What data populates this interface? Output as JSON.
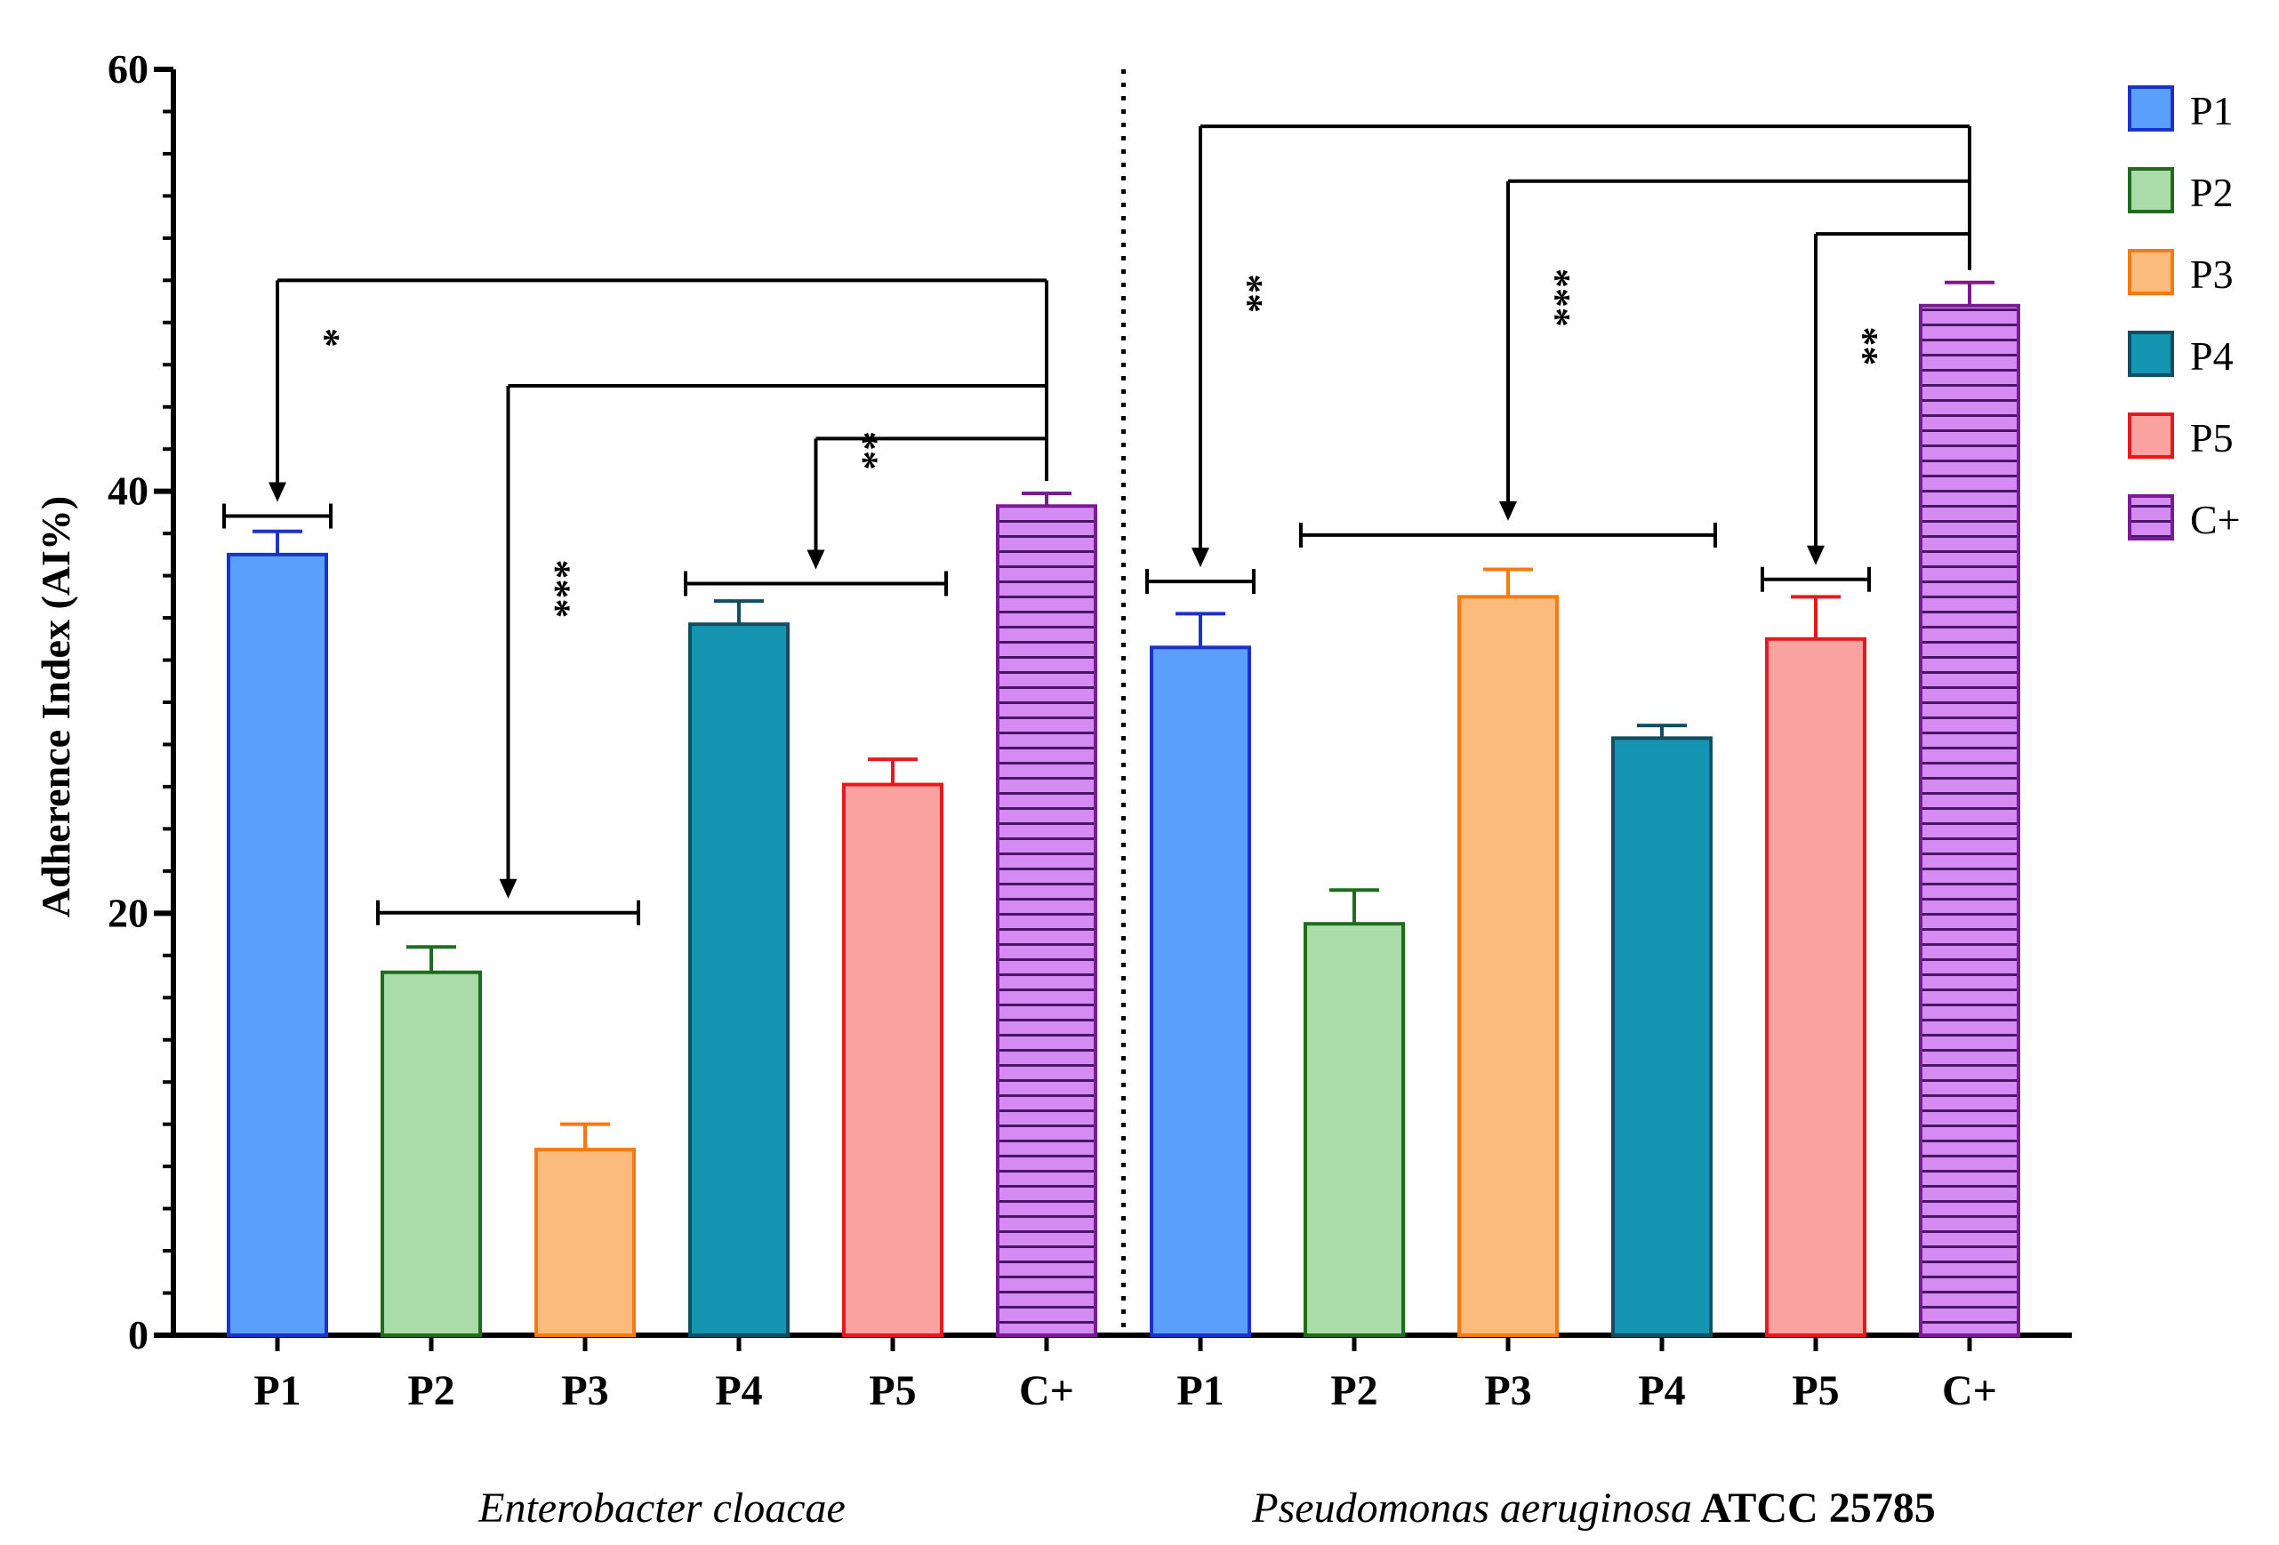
{
  "chart_data": {
    "type": "bar",
    "ylabel": "Adherence Index (AI%)",
    "ylim": [
      0,
      60
    ],
    "yticks": [
      0,
      20,
      40,
      60
    ],
    "minor_tick_step": 2,
    "legend": {
      "placement": "right",
      "entries": [
        {
          "label": "P1",
          "fill": "#5aa0fb",
          "stroke": "#1b33c8",
          "hatch": false
        },
        {
          "label": "P2",
          "fill": "#aadcaa",
          "stroke": "#1f6b1f",
          "hatch": false
        },
        {
          "label": "P3",
          "fill": "#fbbb7d",
          "stroke": "#f57a12",
          "hatch": false
        },
        {
          "label": "P4",
          "fill": "#1496b2",
          "stroke": "#124e63",
          "hatch": false
        },
        {
          "label": "P5",
          "fill": "#f9a2a0",
          "stroke": "#e5191f",
          "hatch": false
        },
        {
          "label": "C+",
          "fill": "#d48cf2",
          "stroke": "#7a1a94",
          "hatch": true
        }
      ]
    },
    "groups": [
      {
        "label_italic": "Enterobacter cloacae",
        "label_plain": "",
        "categories": [
          "P1",
          "P2",
          "P3",
          "P4",
          "P5",
          "C+"
        ],
        "values": [
          37,
          17.2,
          8.8,
          33.7,
          26.1,
          39.3
        ],
        "errors": [
          1.1,
          1.2,
          1.2,
          1.1,
          1.2,
          0.6
        ],
        "comparisons": [
          {
            "label": "*",
            "targets": [
              0
            ],
            "line_y": 50,
            "arrow_to": 39.5
          },
          {
            "label": "***",
            "targets": [
              1,
              2
            ],
            "line_y": 45,
            "arrow_to": 20.7
          },
          {
            "label": "**",
            "targets": [
              3,
              4
            ],
            "line_y": 42.5,
            "arrow_to": 36.3
          }
        ]
      },
      {
        "label_italic": "Pseudomonas aeruginosa",
        "label_plain": " ATCC 25785",
        "categories": [
          "P1",
          "P2",
          "P3",
          "P4",
          "P5",
          "C+"
        ],
        "values": [
          32.6,
          19.5,
          35,
          28.3,
          33,
          48.8
        ],
        "errors": [
          1.6,
          1.6,
          1.3,
          0.6,
          2,
          1.1
        ],
        "comparisons": [
          {
            "label": "**",
            "targets": [
              0
            ],
            "line_y": 57.3,
            "arrow_to": 36.4
          },
          {
            "label": "***",
            "targets": [
              1,
              2,
              3
            ],
            "line_y": 54.7,
            "arrow_to": 38.6
          },
          {
            "label": "**",
            "targets": [
              4
            ],
            "line_y": 52.2,
            "arrow_to": 36.5
          }
        ]
      }
    ]
  }
}
